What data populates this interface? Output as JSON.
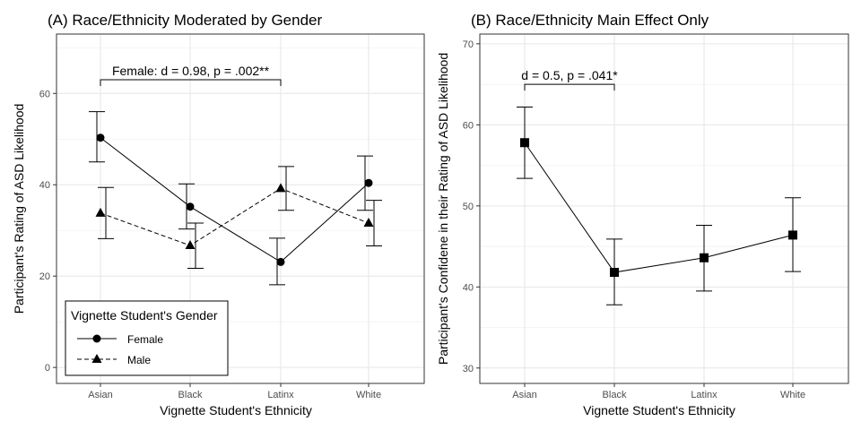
{
  "chart_data": [
    {
      "type": "line",
      "title": "(A) Race/Ethnicity Moderated by Gender",
      "xlabel": "Vignette Student's Ethnicity",
      "ylabel": "Participant's Rating of ASD Likelihood",
      "categories": [
        "Asian",
        "Black",
        "Latinx",
        "White"
      ],
      "yticks": [
        0,
        20,
        40,
        60
      ],
      "ylim": [
        -3.5,
        73
      ],
      "grid": true,
      "legend": {
        "title": "Vignette Student's Gender",
        "position": "bottom-left"
      },
      "series": [
        {
          "name": "Female",
          "marker": "circle",
          "dash": "solid",
          "values": [
            50.3,
            35.2,
            23.1,
            40.4
          ],
          "lower": [
            45.0,
            30.3,
            18.1,
            34.4
          ],
          "upper": [
            56.0,
            40.2,
            28.3,
            46.3
          ]
        },
        {
          "name": "Male",
          "marker": "triangle",
          "dash": "dashed",
          "values": [
            33.8,
            26.7,
            39.2,
            31.6
          ],
          "lower": [
            28.2,
            21.7,
            34.4,
            26.6
          ],
          "upper": [
            39.4,
            31.6,
            44.0,
            36.6
          ]
        }
      ],
      "annotation": {
        "text": "Female: d = 0.98, p = .002**",
        "from": "Asian",
        "to": "Latinx",
        "y": 63
      }
    },
    {
      "type": "line",
      "title": "(B) Race/Ethnicity Main Effect Only",
      "xlabel": "Vignette Student's Ethnicity",
      "ylabel": "Participant's Confidene in their Rating of ASD Likelihood",
      "categories": [
        "Asian",
        "Black",
        "Latinx",
        "White"
      ],
      "yticks": [
        30,
        40,
        50,
        60,
        70
      ],
      "ylim": [
        28.1,
        71.2
      ],
      "grid": true,
      "series": [
        {
          "marker": "square",
          "dash": "solid",
          "values": [
            57.8,
            41.8,
            43.6,
            46.4
          ],
          "lower": [
            53.4,
            37.8,
            39.5,
            41.9
          ],
          "upper": [
            62.2,
            45.9,
            47.6,
            51.0
          ]
        }
      ],
      "annotation": {
        "text": "d = 0.5, p = .041*",
        "from": "Asian",
        "to": "Black",
        "y": 65
      }
    }
  ]
}
